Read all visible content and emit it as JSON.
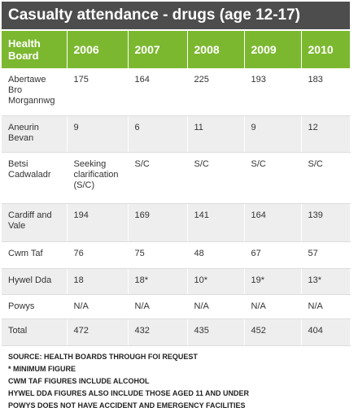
{
  "title": "Casualty attendance - drugs (age 12-17)",
  "table": {
    "header": [
      "Health Board",
      "2006",
      "2007",
      "2008",
      "2009",
      "2010"
    ],
    "rows": [
      [
        "Abertawe Bro Morgannwg",
        "175",
        "164",
        "225",
        "193",
        "183"
      ],
      [
        "Aneurin Bevan",
        "9",
        "6",
        "11",
        "9",
        "12"
      ],
      [
        "Betsi Cadwaladr",
        "Seeking clarification (S/C)",
        "S/C",
        "S/C",
        "S/C",
        "S/C"
      ],
      [
        "Cardiff and Vale",
        "194",
        "169",
        "141",
        "164",
        "139"
      ],
      [
        "Cwm Taf",
        "76",
        "75",
        "48",
        "67",
        "57"
      ],
      [
        "Hywel Dda",
        "18",
        "18*",
        "10*",
        "19*",
        "13*"
      ],
      [
        "Powys",
        "N/A",
        "N/A",
        "N/A",
        "N/A",
        "N/A"
      ],
      [
        "Total",
        "472",
        "432",
        "435",
        "452",
        "404"
      ]
    ]
  },
  "notes": [
    "SOURCE: HEALTH BOARDS THROUGH FOI REQUEST",
    "* MINIMUM FIGURE",
    "CWM TAF FIGURES INCLUDE ALCOHOL",
    "HYWEL DDA FIGURES ALSO INCLUDE THOSE AGED 11 AND UNDER",
    "POWYS DOES NOT HAVE ACCIDENT AND EMERGENCY FACILITIES"
  ]
}
